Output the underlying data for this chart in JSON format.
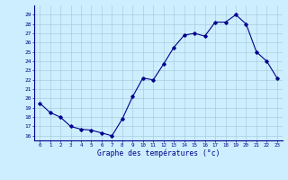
{
  "hours": [
    0,
    1,
    2,
    3,
    4,
    5,
    6,
    7,
    8,
    9,
    10,
    11,
    12,
    13,
    14,
    15,
    16,
    17,
    18,
    19,
    20,
    21,
    22,
    23
  ],
  "temperatures": [
    19.5,
    18.5,
    18.0,
    17.0,
    16.7,
    16.6,
    16.3,
    16.0,
    17.8,
    20.2,
    22.2,
    22.0,
    23.7,
    25.5,
    26.8,
    27.0,
    26.7,
    28.2,
    28.2,
    29.0,
    28.0,
    25.0,
    24.0,
    22.2
  ],
  "line_color": "#00008B",
  "marker": "D",
  "marker_size": 1.8,
  "line_width": 0.8,
  "bg_color": "#cceeff",
  "grid_color": "#aaccdd",
  "xlabel": "Graphe des températures (°c)",
  "ylabel_ticks": [
    16,
    17,
    18,
    19,
    20,
    21,
    22,
    23,
    24,
    25,
    26,
    27,
    28,
    29
  ],
  "ylim": [
    15.5,
    30.0
  ],
  "xlim": [
    -0.5,
    23.5
  ]
}
